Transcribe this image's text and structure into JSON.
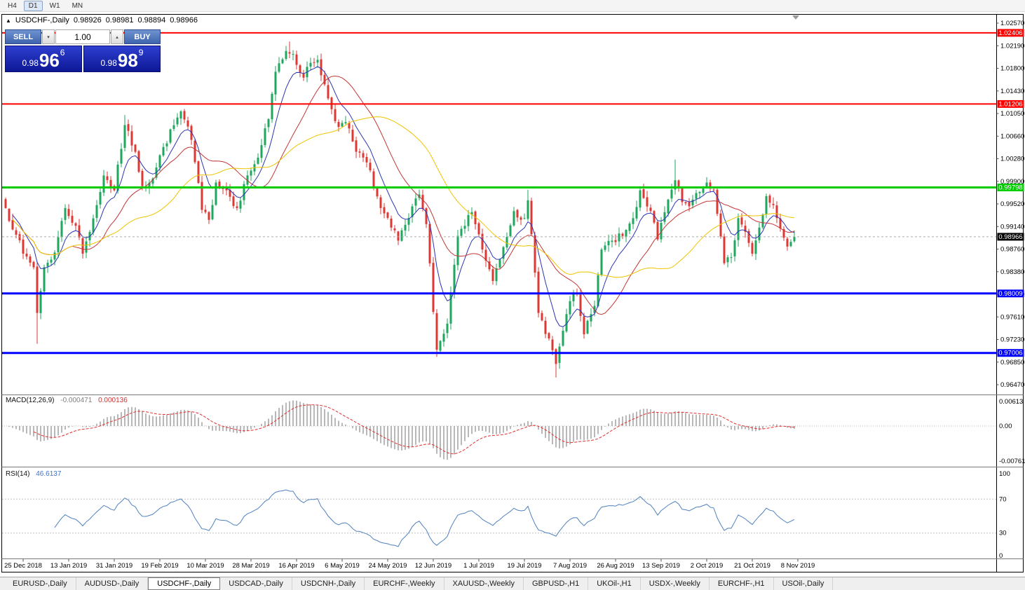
{
  "toolbar": {
    "timeframes": [
      {
        "label": "H4",
        "active": false
      },
      {
        "label": "D1",
        "active": true
      },
      {
        "label": "W1",
        "active": false
      },
      {
        "label": "MN",
        "active": false
      }
    ]
  },
  "header": {
    "marker": "▲",
    "symbol": "USDCHF-,Daily",
    "open": "0.98926",
    "high": "0.98981",
    "low": "0.98894",
    "close": "0.98966"
  },
  "trade_panel": {
    "sell_label": "SELL",
    "buy_label": "BUY",
    "volume": "1.00",
    "spinner_down_glyph": "▾",
    "spinner_up_glyph": "▴",
    "sell_price": {
      "prefix": "0.98",
      "big": "96",
      "sup": "6"
    },
    "buy_price": {
      "prefix": "0.98",
      "big": "98",
      "sup": "9"
    }
  },
  "tabs": {
    "items": [
      {
        "label": "EURUSD-,Daily",
        "active": false
      },
      {
        "label": "AUDUSD-,Daily",
        "active": false
      },
      {
        "label": "USDCHF-,Daily",
        "active": true
      },
      {
        "label": "USDCAD-,Daily",
        "active": false
      },
      {
        "label": "USDCNH-,Daily",
        "active": false
      },
      {
        "label": "EURCHF-,Weekly",
        "active": false
      },
      {
        "label": "XAUUSD-,Weekly",
        "active": false
      },
      {
        "label": "GBPUSD-,H1",
        "active": false
      },
      {
        "label": "UKOil-,H1",
        "active": false
      },
      {
        "label": "USDX-,Weekly",
        "active": false
      },
      {
        "label": "EURCHF-,H1",
        "active": false
      },
      {
        "label": "USOil-,Daily",
        "active": false
      }
    ]
  },
  "chart_data": {
    "type": "candlestick",
    "symbol": "USDCHF-,Daily",
    "candle_count": 226,
    "y_axis": {
      "top_price": 1.0257,
      "bottom_price": 0.9647,
      "labels": [
        "1.02570",
        "1.02190",
        "1.01800",
        "1.01430",
        "1.01050",
        "1.00660",
        "1.00280",
        "0.99900",
        "0.99520",
        "0.99140",
        "0.98760",
        "0.98380",
        "0.98000",
        "0.97610",
        "0.97230",
        "0.96850",
        "0.96470"
      ]
    },
    "x_axis": {
      "labels": [
        "25 Dec 2018",
        "13 Jan 2019",
        "31 Jan 2019",
        "19 Feb 2019",
        "10 Mar 2019",
        "28 Mar 2019",
        "16 Apr 2019",
        "6 May 2019",
        "24 May 2019",
        "12 Jun 2019",
        "1 Jul 2019",
        "19 Jul 2019",
        "7 Aug 2019",
        "26 Aug 2019",
        "13 Sep 2019",
        "2 Oct 2019",
        "21 Oct 2019",
        "8 Nov 2019"
      ]
    },
    "price_anchors": [
      [
        0,
        0.9945
      ],
      [
        3,
        0.99
      ],
      [
        5,
        0.9868
      ],
      [
        8,
        0.9845
      ],
      [
        9,
        0.9768
      ],
      [
        11,
        0.9845
      ],
      [
        14,
        0.987
      ],
      [
        17,
        0.9945
      ],
      [
        20,
        0.9915
      ],
      [
        22,
        0.9868
      ],
      [
        26,
        0.995
      ],
      [
        28,
        1.0
      ],
      [
        31,
        0.9975
      ],
      [
        34,
        1.0085
      ],
      [
        37,
        1.004
      ],
      [
        39,
        0.9982
      ],
      [
        42,
        0.9995
      ],
      [
        45,
        1.0048
      ],
      [
        50,
        1.0108
      ],
      [
        53,
        1.006
      ],
      [
        56,
        0.9942
      ],
      [
        58,
        0.9925
      ],
      [
        60,
        0.9988
      ],
      [
        63,
        0.9975
      ],
      [
        66,
        0.9945
      ],
      [
        69,
        1.0
      ],
      [
        72,
        1.003
      ],
      [
        75,
        1.0095
      ],
      [
        77,
        1.0175
      ],
      [
        80,
        1.021
      ],
      [
        82,
        1.0205
      ],
      [
        85,
        1.0165
      ],
      [
        87,
        1.019
      ],
      [
        89,
        1.0195
      ],
      [
        92,
        1.013
      ],
      [
        95,
        1.0082
      ],
      [
        97,
        1.009
      ],
      [
        100,
        1.004
      ],
      [
        103,
        1.0022
      ],
      [
        107,
        0.9945
      ],
      [
        110,
        0.9912
      ],
      [
        112,
        0.989
      ],
      [
        115,
        0.9928
      ],
      [
        118,
        0.9968
      ],
      [
        120,
        0.9918
      ],
      [
        123,
        0.9706
      ],
      [
        126,
        0.975
      ],
      [
        129,
        0.9898
      ],
      [
        131,
        0.9915
      ],
      [
        133,
        0.9938
      ],
      [
        136,
        0.9875
      ],
      [
        139,
        0.9822
      ],
      [
        141,
        0.9858
      ],
      [
        145,
        0.994
      ],
      [
        148,
        0.9928
      ],
      [
        149,
        0.9958
      ],
      [
        152,
        0.9768
      ],
      [
        155,
        0.9725
      ],
      [
        157,
        0.9682
      ],
      [
        159,
        0.9738
      ],
      [
        161,
        0.9788
      ],
      [
        163,
        0.98
      ],
      [
        165,
        0.9732
      ],
      [
        168,
        0.978
      ],
      [
        170,
        0.9875
      ],
      [
        173,
        0.989
      ],
      [
        176,
        0.9898
      ],
      [
        179,
        0.9928
      ],
      [
        181,
        0.9975
      ],
      [
        184,
        0.994
      ],
      [
        186,
        0.9892
      ],
      [
        188,
        0.9938
      ],
      [
        191,
        0.9992
      ],
      [
        193,
        0.9955
      ],
      [
        195,
        0.9948
      ],
      [
        198,
        0.9972
      ],
      [
        200,
        0.9988
      ],
      [
        202,
        0.9975
      ],
      [
        205,
        0.9852
      ],
      [
        207,
        0.9862
      ],
      [
        209,
        0.9928
      ],
      [
        211,
        0.9905
      ],
      [
        213,
        0.9868
      ],
      [
        215,
        0.9912
      ],
      [
        217,
        0.9965
      ],
      [
        219,
        0.995
      ],
      [
        220,
        0.9928
      ],
      [
        222,
        0.9895
      ],
      [
        223,
        0.988
      ],
      [
        225,
        0.98966
      ]
    ],
    "spike_highs": [
      [
        34,
        1.0102
      ],
      [
        81,
        1.0226
      ],
      [
        149,
        0.9976
      ],
      [
        191,
        1.0027
      ]
    ],
    "spike_lows": [
      [
        9,
        0.9716
      ],
      [
        123,
        0.9694
      ],
      [
        157,
        0.9659
      ]
    ],
    "levels": [
      {
        "price": 1.02406,
        "label": "1.02406",
        "color": "#FF0000",
        "width": 2
      },
      {
        "price": 1.01206,
        "label": "1.01206",
        "color": "#FF0000",
        "width": 2
      },
      {
        "price": 0.99798,
        "label": "0.99798",
        "color": "#00CC00",
        "width": 3
      },
      {
        "price": 0.98009,
        "label": "0.98009",
        "color": "#0000FF",
        "width": 3
      },
      {
        "price": 0.97006,
        "label": "0.97006",
        "color": "#0000FF",
        "width": 3
      }
    ],
    "last_price": {
      "value": 0.98966,
      "label": "0.98966",
      "color": "#000000"
    },
    "moving_averages": [
      {
        "name": "fast",
        "period": 8,
        "method": "ema",
        "color": "#2A35B2"
      },
      {
        "name": "mid",
        "period": 20,
        "method": "sma",
        "color": "#C43535"
      },
      {
        "name": "slow",
        "period": 40,
        "method": "sma",
        "color": "#EFC400"
      }
    ],
    "macd": {
      "title": "MACD(12,26,9)",
      "value_main": "-0.000471",
      "value_signal": "0.000136",
      "axis_labels": [
        "0.00613",
        "0.00",
        "-0.00761"
      ],
      "histogram_color": "#9A9A9A",
      "signal_color": "#E03030"
    },
    "rsi": {
      "title": "RSI(14)",
      "value": "46.6137",
      "period": 14,
      "axis_labels": [
        "100",
        "70",
        "30",
        "0"
      ],
      "levels": [
        70,
        30
      ],
      "line_color": "#4F81BD"
    },
    "style": {
      "up_color": "#1FA75D",
      "down_color": "#DE3834",
      "background": "#FFFFFF"
    }
  }
}
